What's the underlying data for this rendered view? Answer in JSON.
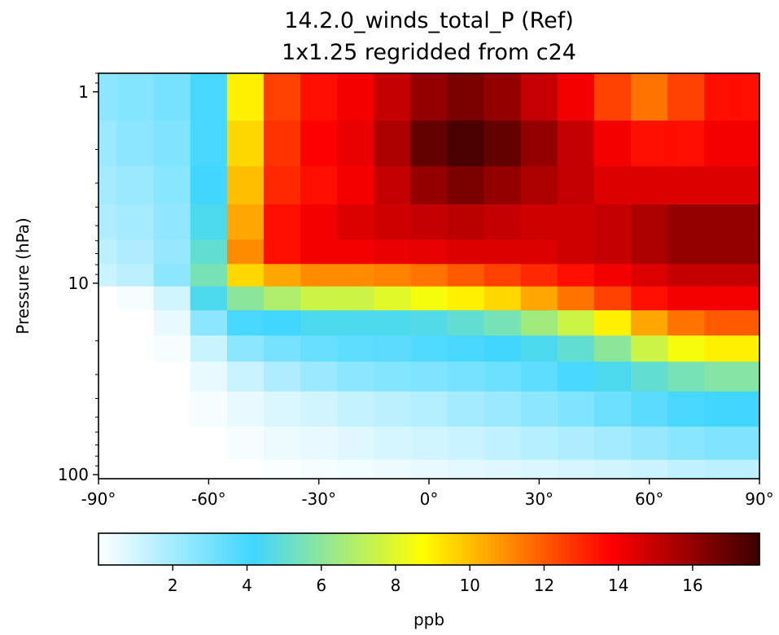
{
  "chart_data": {
    "type": "heatmap",
    "title": "14.2.0_winds_total_P (Ref)",
    "subtitle": "1x1.25 regridded from c24",
    "xlabel": "",
    "ylabel": "Pressure (hPa)",
    "xlim": [
      -90,
      90
    ],
    "ylim": [
      105,
      0.8
    ],
    "yscale": "log",
    "x_ticks": [
      -90,
      -60,
      -30,
      0,
      30,
      60,
      90
    ],
    "x_tick_labels": [
      "-90°",
      "-60°",
      "-30°",
      "0°",
      "30°",
      "60°",
      "90°"
    ],
    "y_ticks": [
      1,
      10,
      100
    ],
    "y_tick_labels": [
      "1",
      "10",
      "100"
    ],
    "colorbar": {
      "label": "ppb",
      "range": [
        0,
        17.8
      ],
      "ticks": [
        2,
        4,
        6,
        8,
        10,
        12,
        14,
        16
      ],
      "tick_labels": [
        "2",
        "4",
        "6",
        "8",
        "10",
        "12",
        "14",
        "16"
      ],
      "colormap": [
        "#ffffff",
        "#40d6ff",
        "#ffff00",
        "#ff0000",
        "#3c0000"
      ],
      "colormap_stops": [
        0,
        0.235,
        0.49,
        0.775,
        1
      ]
    },
    "latitudes": [
      -90,
      -80,
      -70,
      -60,
      -50,
      -40,
      -30,
      -20,
      -10,
      0,
      10,
      20,
      30,
      40,
      50,
      60,
      70,
      80,
      90
    ],
    "series": [
      {
        "pressure": 1,
        "values": [
          2.5,
          2.7,
          3.0,
          4.0,
          9.0,
          12.5,
          13.5,
          14.0,
          15.0,
          16.0,
          16.5,
          16.0,
          15.0,
          14.0,
          12.5,
          11.5,
          12.5,
          13.5,
          13.5
        ]
      },
      {
        "pressure": 2,
        "values": [
          2.2,
          2.5,
          2.8,
          4.0,
          9.5,
          12.8,
          13.8,
          14.2,
          15.5,
          17.0,
          17.5,
          17.0,
          16.0,
          15.0,
          14.0,
          13.5,
          13.5,
          14.0,
          14.0
        ]
      },
      {
        "pressure": 3,
        "values": [
          2.0,
          2.2,
          2.6,
          4.2,
          10.0,
          13.0,
          13.5,
          14.0,
          15.0,
          16.0,
          16.5,
          16.0,
          15.5,
          15.0,
          14.5,
          14.5,
          14.5,
          14.5,
          14.5
        ]
      },
      {
        "pressure": 5,
        "values": [
          1.8,
          2.0,
          2.4,
          4.5,
          10.5,
          13.5,
          14.0,
          14.5,
          14.8,
          15.0,
          15.2,
          15.0,
          14.8,
          14.8,
          15.0,
          15.5,
          16.0,
          16.0,
          16.0
        ]
      },
      {
        "pressure": 7,
        "values": [
          1.5,
          1.8,
          2.3,
          5.0,
          11.0,
          13.5,
          14.0,
          14.0,
          14.2,
          14.3,
          14.5,
          14.5,
          14.5,
          14.8,
          15.0,
          15.5,
          16.0,
          16.0,
          16.0
        ]
      },
      {
        "pressure": 9,
        "values": [
          1.2,
          1.5,
          2.5,
          5.5,
          9.5,
          10.5,
          11.0,
          11.0,
          11.2,
          11.5,
          12.0,
          12.5,
          13.0,
          13.5,
          14.0,
          14.5,
          15.0,
          15.0,
          15.0
        ]
      },
      {
        "pressure": 12,
        "values": [
          0.0,
          0.2,
          1.0,
          4.5,
          6.0,
          6.8,
          7.5,
          7.5,
          8.0,
          8.5,
          9.0,
          9.5,
          10.5,
          11.5,
          12.5,
          13.5,
          14.0,
          14.0,
          14.0
        ]
      },
      {
        "pressure": 16,
        "values": [
          0.0,
          0.0,
          0.5,
          2.5,
          4.0,
          4.2,
          4.5,
          4.5,
          4.5,
          4.6,
          5.0,
          5.5,
          6.5,
          7.5,
          9.0,
          10.5,
          11.5,
          12.0,
          12.0
        ]
      },
      {
        "pressure": 22,
        "values": [
          0.0,
          0.0,
          0.2,
          1.2,
          2.5,
          3.0,
          3.3,
          3.5,
          3.6,
          3.8,
          4.0,
          4.2,
          4.5,
          5.0,
          6.0,
          7.5,
          8.5,
          9.0,
          9.0
        ]
      },
      {
        "pressure": 30,
        "values": [
          0.0,
          0.0,
          0.0,
          0.5,
          1.2,
          1.8,
          2.2,
          2.5,
          2.7,
          2.8,
          3.0,
          3.2,
          3.5,
          4.0,
          4.5,
          5.0,
          5.5,
          5.8,
          5.8
        ]
      },
      {
        "pressure": 45,
        "values": [
          0.0,
          0.0,
          0.0,
          0.2,
          0.5,
          0.8,
          1.0,
          1.3,
          1.5,
          1.7,
          2.0,
          2.2,
          2.5,
          2.8,
          3.2,
          3.6,
          4.0,
          4.2,
          4.2
        ]
      },
      {
        "pressure": 70,
        "values": [
          0.0,
          0.0,
          0.0,
          0.0,
          0.2,
          0.4,
          0.5,
          0.7,
          0.9,
          1.0,
          1.2,
          1.4,
          1.6,
          1.8,
          2.0,
          2.3,
          2.6,
          2.8,
          2.8
        ]
      },
      {
        "pressure": 100,
        "values": [
          0.0,
          0.0,
          0.0,
          0.0,
          0.0,
          0.1,
          0.2,
          0.3,
          0.4,
          0.5,
          0.6,
          0.7,
          0.8,
          0.9,
          1.0,
          1.2,
          1.4,
          1.5,
          1.5
        ]
      }
    ]
  }
}
